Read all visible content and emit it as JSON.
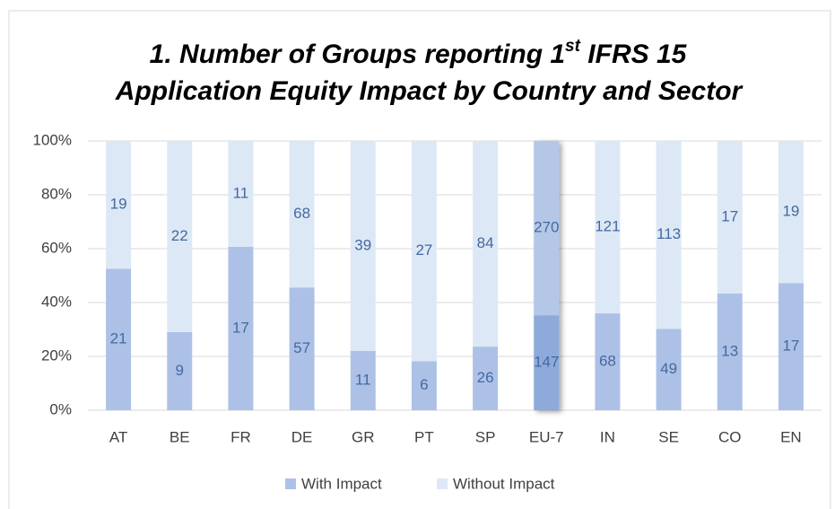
{
  "chart_data": {
    "type": "bar",
    "stacked": "percent",
    "title": [
      "1. Number of Groups reporting 1",
      "st",
      " IFRS 15",
      "Application Equity Impact by Country and Sector"
    ],
    "categories": [
      "AT",
      "BE",
      "FR",
      "DE",
      "GR",
      "PT",
      "SP",
      "EU-7",
      "IN",
      "SE",
      "CO",
      "EN"
    ],
    "series": [
      {
        "name": "With Impact",
        "color": "#adc1e7",
        "highlight_color": "#8eaadb",
        "values": [
          21,
          9,
          17,
          57,
          11,
          6,
          26,
          147,
          68,
          49,
          13,
          17
        ]
      },
      {
        "name": "Without Impact",
        "color": "#dde8f6",
        "highlight_color": "#b4c7e7",
        "values": [
          19,
          22,
          11,
          68,
          39,
          27,
          84,
          270,
          121,
          113,
          17,
          19
        ]
      }
    ],
    "highlight_index": 7,
    "ylim": [
      0,
      100
    ],
    "yticks": [
      {
        "value": 0,
        "label": "0%"
      },
      {
        "value": 20,
        "label": "20%"
      },
      {
        "value": 40,
        "label": "40%"
      },
      {
        "value": 60,
        "label": "60%"
      },
      {
        "value": 80,
        "label": "80%"
      },
      {
        "value": 100,
        "label": "100%"
      }
    ],
    "grid": true,
    "legend": "bottom"
  }
}
